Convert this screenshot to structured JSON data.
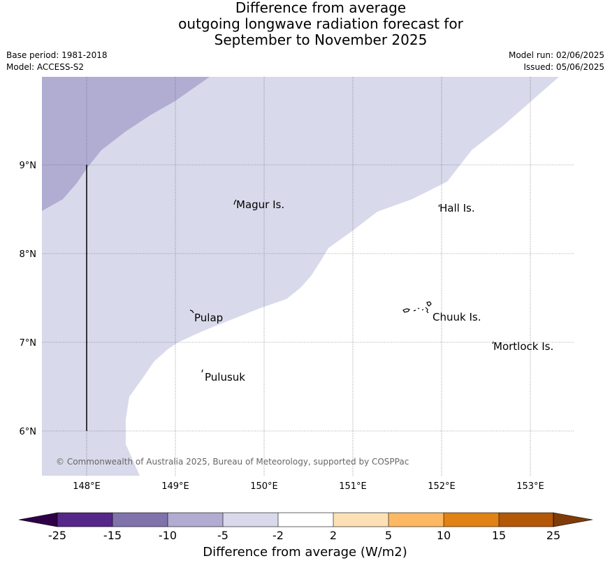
{
  "header": {
    "title_lines": [
      "Difference from average",
      "outgoing longwave radiation forecast for",
      "September to November 2025"
    ],
    "base_period": "Base period: 1981-2018",
    "model": "Model: ACCESS-S2",
    "model_run": "Model run: 02/06/2025",
    "issued": "Issued: 05/06/2025"
  },
  "map": {
    "lat_ticks": [
      "6°N",
      "7°N",
      "8°N",
      "9°N"
    ],
    "lon_ticks": [
      "148°E",
      "149°E",
      "150°E",
      "151°E",
      "152°E",
      "153°E"
    ],
    "places": [
      "Magur Is.",
      "Hall Is.",
      "Pulap",
      "Chuuk Is.",
      "Mortlock Is.",
      "Pulusuk"
    ],
    "copyright": "© Commonwealth of Australia 2025, Bureau of Meteorology, supported by COSPPac",
    "fill_colors": {
      "minus10_to_minus5": "#b1acd2",
      "minus5_to_minus2": "#d8d9ea",
      "minus2_to_2": "#ffffff"
    }
  },
  "colorbar": {
    "ticks": [
      "-25",
      "-15",
      "-10",
      "-5",
      "-2",
      "2",
      "5",
      "10",
      "15",
      "25"
    ],
    "colors": [
      "#2d0048",
      "#542788",
      "#8073ac",
      "#b2abd2",
      "#d8daeb",
      "#ffffff",
      "#fee0b6",
      "#fdb863",
      "#e08214",
      "#b35806",
      "#7f3b08"
    ],
    "title": "Difference from average (W/m2)"
  }
}
